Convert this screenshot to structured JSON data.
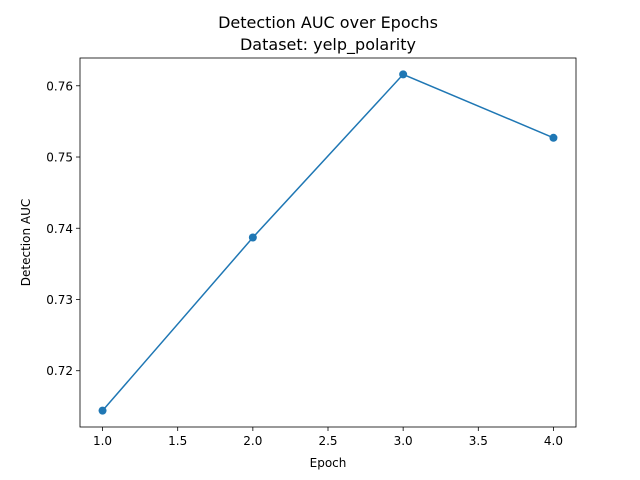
{
  "chart_data": {
    "type": "line",
    "title": "Detection AUC over Epochs",
    "subtitle": "Dataset: yelp_polarity",
    "xlabel": "Epoch",
    "ylabel": "Detection AUC",
    "x": [
      1.0,
      2.0,
      3.0,
      4.0
    ],
    "series": [
      {
        "values": [
          0.7144,
          0.7387,
          0.7616,
          0.7527
        ],
        "color": "#1f77b4",
        "marker": "circle"
      }
    ],
    "xlim": [
      0.85,
      4.15
    ],
    "ylim": [
      0.7121,
      0.7639
    ],
    "xticks": [
      1.0,
      1.5,
      2.0,
      2.5,
      3.0,
      3.5,
      4.0
    ],
    "xtick_labels": [
      "1.0",
      "1.5",
      "2.0",
      "2.5",
      "3.0",
      "3.5",
      "4.0"
    ],
    "yticks": [
      0.72,
      0.73,
      0.74,
      0.75,
      0.76
    ],
    "ytick_labels": [
      "0.72",
      "0.73",
      "0.74",
      "0.75",
      "0.76"
    ],
    "grid": false,
    "legend": false
  }
}
